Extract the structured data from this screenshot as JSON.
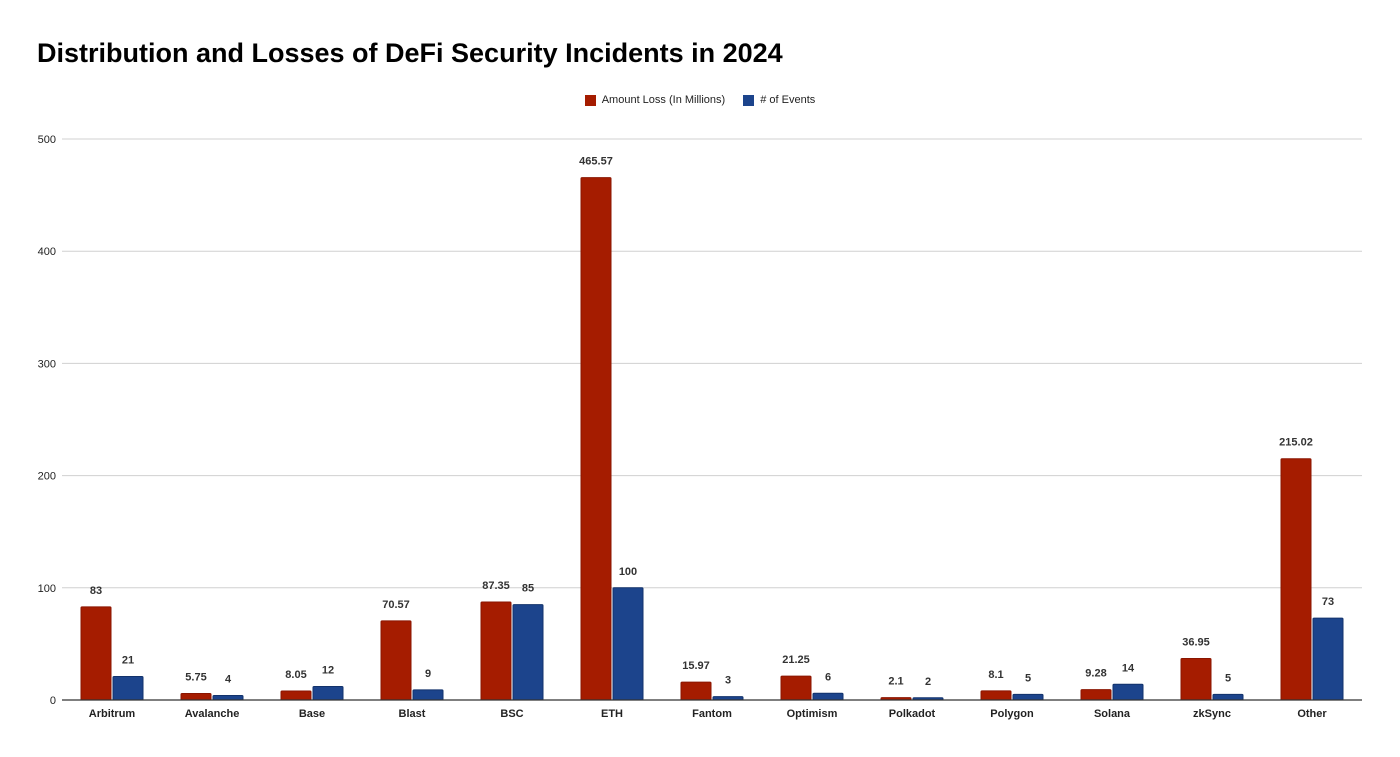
{
  "chart_data": {
    "type": "bar",
    "title": "Distribution and Losses of DeFi Security Incidents in 2024",
    "xlabel": "",
    "ylabel": "",
    "ylim": [
      0,
      500
    ],
    "yticks": [
      "0",
      "100",
      "200",
      "300",
      "400",
      "500"
    ],
    "grid": true,
    "legend_position": "top-center",
    "categories": [
      "Arbitrum",
      "Avalanche",
      "Base",
      "Blast",
      "BSC",
      "ETH",
      "Fantom",
      "Optimism",
      "Polkadot",
      "Polygon",
      "Solana",
      "zkSync",
      "Other"
    ],
    "series": [
      {
        "name": "Amount Loss (In Millions)",
        "color": "#a51c00",
        "values": [
          83,
          5.75,
          8.05,
          70.57,
          87.35,
          465.57,
          15.97,
          21.25,
          2.1,
          8.1,
          9.28,
          36.95,
          215.02
        ]
      },
      {
        "name": "# of Events",
        "color": "#1c448c",
        "values": [
          21,
          4,
          12,
          9,
          85,
          100,
          3,
          6,
          2,
          5,
          14,
          5,
          73
        ]
      }
    ]
  }
}
